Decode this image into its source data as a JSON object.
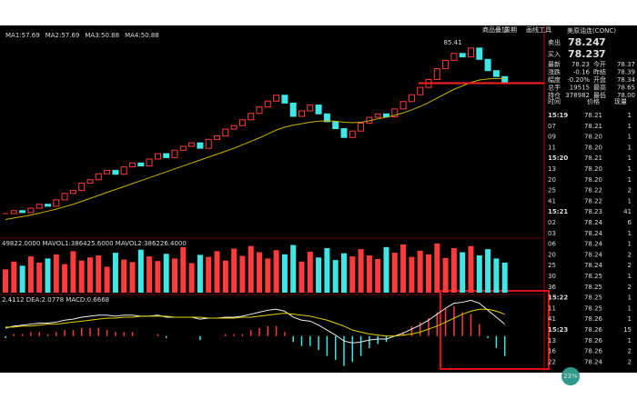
{
  "toolbar": {
    "links": [
      "商品叠加",
      "周期",
      "画线工具"
    ]
  },
  "price_panel": {
    "legend": [
      {
        "text": "MA1:57.69",
        "color": "#ffffff"
      },
      {
        "text": "MA2:57.69",
        "color": "#e6d200"
      },
      {
        "text": "MA3:50.88",
        "color": "#ff33ff"
      },
      {
        "text": "MA4:50.88",
        "color": "#33dd33"
      }
    ],
    "ylim": [
      48,
      90
    ],
    "closes": [
      51.7,
      52.3,
      51.9,
      52.8,
      53.6,
      53.2,
      54.5,
      55.8,
      56.4,
      57.9,
      58.6,
      59.8,
      60.5,
      59.7,
      61.2,
      62.0,
      61.4,
      62.8,
      63.9,
      63.1,
      64.6,
      65.4,
      66.1,
      65.0,
      66.8,
      67.5,
      68.9,
      69.6,
      70.8,
      72.1,
      73.4,
      74.6,
      75.8,
      74.2,
      71.5,
      72.6,
      73.8,
      72.0,
      70.4,
      69.0,
      67.2,
      68.5,
      70.1,
      71.3,
      72.0,
      71.4,
      73.0,
      74.5,
      75.9,
      77.4,
      79.0,
      81.2,
      82.9,
      84.3,
      83.6,
      85.4,
      83.1,
      80.8,
      79.6,
      78.24
    ],
    "ma": [
      50.5,
      50.8,
      51.1,
      51.4,
      51.8,
      52.2,
      52.6,
      53.1,
      53.6,
      54.2,
      54.8,
      55.4,
      56.0,
      56.6,
      57.2,
      57.8,
      58.4,
      59.0,
      59.6,
      60.2,
      60.8,
      61.4,
      62.0,
      62.6,
      63.2,
      63.8,
      64.4,
      65.0,
      65.7,
      66.4,
      67.1,
      67.9,
      68.7,
      69.3,
      69.7,
      70.0,
      70.3,
      70.5,
      70.6,
      70.5,
      70.3,
      70.2,
      70.3,
      70.6,
      71.0,
      71.3,
      71.7,
      72.2,
      72.8,
      73.5,
      74.3,
      75.2,
      76.1,
      77.0,
      77.7,
      78.4,
      78.9,
      79.1,
      79.2,
      79.2
    ],
    "ma_color": "#c8b400",
    "up_color": "#ff3b3b",
    "down_color": "#3ee6e6",
    "high_label": "85.41",
    "last_line": 78.24
  },
  "volume_panel": {
    "legend": "49822.0000 MAVOL1:386425.6000 MAVOL2:386226.4000",
    "ylim": [
      0,
      100
    ],
    "values": [
      45,
      60,
      52,
      70,
      58,
      66,
      74,
      55,
      80,
      62,
      68,
      72,
      50,
      77,
      64,
      59,
      83,
      70,
      61,
      75,
      66,
      88,
      57,
      73,
      69,
      80,
      62,
      85,
      71,
      90,
      78,
      66,
      82,
      74,
      92,
      60,
      79,
      68,
      86,
      63,
      76,
      70,
      84,
      72,
      65,
      88,
      77,
      93,
      69,
      81,
      74,
      95,
      67,
      86,
      78,
      90,
      72,
      84,
      66,
      58
    ]
  },
  "macd_panel": {
    "legend": "2.4112 DEA:2.0778 MACD:0.6668",
    "ylim": [
      -3.5,
      4
    ],
    "dif": [
      0.8,
      1.0,
      1.1,
      1.2,
      1.3,
      1.3,
      1.4,
      1.6,
      1.7,
      1.9,
      2.0,
      2.1,
      2.1,
      2.0,
      2.1,
      2.1,
      2.0,
      2.0,
      2.1,
      1.9,
      1.9,
      1.9,
      1.9,
      1.7,
      1.8,
      1.8,
      1.9,
      1.9,
      2.0,
      2.2,
      2.4,
      2.6,
      2.7,
      2.5,
      1.9,
      1.6,
      1.5,
      1.1,
      0.6,
      0.1,
      -0.5,
      -0.7,
      -0.6,
      -0.4,
      -0.3,
      -0.3,
      0.0,
      0.3,
      0.7,
      1.1,
      1.6,
      2.2,
      2.8,
      3.3,
      3.4,
      3.6,
      3.3,
      2.6,
      1.9,
      1.2
    ],
    "dea": [
      0.9,
      0.9,
      1.0,
      1.0,
      1.1,
      1.2,
      1.2,
      1.3,
      1.4,
      1.5,
      1.6,
      1.7,
      1.8,
      1.8,
      1.9,
      1.9,
      2.0,
      2.0,
      2.0,
      2.0,
      1.9,
      1.9,
      1.9,
      1.9,
      1.8,
      1.8,
      1.8,
      1.8,
      1.9,
      1.9,
      2.0,
      2.1,
      2.2,
      2.3,
      2.2,
      2.1,
      2.0,
      1.8,
      1.6,
      1.3,
      1.0,
      0.6,
      0.4,
      0.2,
      0.1,
      0.0,
      0.0,
      0.1,
      0.2,
      0.4,
      0.7,
      1.0,
      1.4,
      1.8,
      2.2,
      2.5,
      2.7,
      2.7,
      2.5,
      2.2
    ],
    "hist": [
      -0.2,
      0.2,
      0.2,
      0.4,
      0.4,
      0.2,
      0.4,
      0.6,
      0.6,
      0.8,
      0.8,
      0.8,
      0.6,
      0.4,
      0.4,
      0.4,
      0.0,
      0.0,
      0.2,
      -0.2,
      0.0,
      0.0,
      0.0,
      -0.4,
      0.0,
      0.0,
      0.2,
      0.2,
      0.2,
      0.6,
      0.8,
      1.0,
      1.0,
      0.4,
      -0.6,
      -1.0,
      -1.0,
      -1.4,
      -2.0,
      -2.4,
      -3.0,
      -2.6,
      -2.0,
      -1.2,
      -0.8,
      -0.6,
      0.0,
      0.4,
      1.0,
      1.4,
      1.8,
      2.4,
      2.8,
      3.0,
      2.4,
      2.2,
      1.2,
      -0.2,
      -1.2,
      -2.0
    ]
  },
  "quote": {
    "title": "美原油连(CONC)",
    "ask": {
      "label": "卖出",
      "price": "78.24",
      "size": "7"
    },
    "bid": {
      "label": "买入",
      "price": "78.23",
      "size": "7"
    },
    "stats": [
      [
        "最新",
        "78.23",
        "今开",
        "78.37"
      ],
      [
        "涨跌",
        "-0.16",
        "昨结",
        "78.39"
      ],
      [
        "幅度",
        "-0.20%",
        "开盘",
        "78.34"
      ],
      [
        "总手",
        "19515",
        "最高",
        "78.65"
      ],
      [
        "持仓",
        "378982",
        "最低",
        "78.00"
      ]
    ],
    "header": [
      "时间",
      "价格",
      "现量"
    ],
    "ticks": [
      [
        "15:19",
        "78.21",
        "1"
      ],
      [
        "07",
        "78.21",
        "1"
      ],
      [
        "09",
        "78.20",
        "1"
      ],
      [
        "11",
        "78.20",
        "1"
      ],
      [
        "15:20",
        "78.21",
        "1"
      ],
      [
        "13",
        "78.20",
        "1"
      ],
      [
        "20",
        "78.20",
        "1"
      ],
      [
        "25",
        "78.22",
        "2"
      ],
      [
        "41",
        "78.22",
        "1"
      ],
      [
        "15:21",
        "78.23",
        "41"
      ],
      [
        "02",
        "78.24",
        "6"
      ],
      [
        "03",
        "78.24",
        "1"
      ],
      [
        "06",
        "78.24",
        "1"
      ],
      [
        "20",
        "78.24",
        "2"
      ],
      [
        "25",
        "78.24",
        "2"
      ],
      [
        "30",
        "78.25",
        "1"
      ],
      [
        "36",
        "78.25",
        "2"
      ],
      [
        "15:22",
        "78.25",
        "1"
      ],
      [
        "11",
        "78.25",
        "1"
      ],
      [
        "41",
        "78.26",
        "1"
      ],
      [
        "15:23",
        "78.26",
        "15"
      ],
      [
        "13",
        "78.26",
        "1"
      ],
      [
        "16",
        "78.26",
        "2"
      ],
      [
        "22",
        "78.24",
        "2"
      ]
    ],
    "badge": "23%"
  }
}
